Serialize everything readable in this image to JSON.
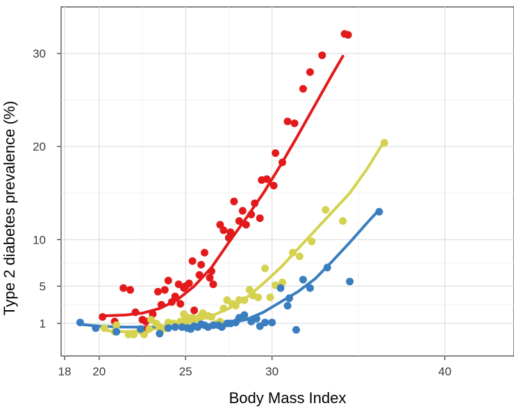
{
  "chart_data": {
    "type": "scatter",
    "title": "",
    "xlabel": "Body Mass Index",
    "ylabel": "Type 2 diabetes prevalence (%)",
    "xlim": [
      17.8,
      44.0
    ],
    "ylim": [
      -2.5,
      35.0
    ],
    "x_ticks": [
      18,
      20,
      25,
      30,
      40
    ],
    "x_tick_labels": [
      "18",
      "20",
      "25",
      "30",
      "40"
    ],
    "y_ticks": [
      1,
      5,
      10,
      20,
      30
    ],
    "y_tick_labels": [
      "1",
      "5",
      "10",
      "20",
      "30"
    ],
    "grid": true,
    "legend": "none",
    "series": [
      {
        "color": "#e31a1c",
        "points": [
          [
            20.2,
            1.7
          ],
          [
            20.9,
            1.2
          ],
          [
            21.4,
            4.8
          ],
          [
            21.8,
            4.6
          ],
          [
            22.1,
            2.2
          ],
          [
            22.5,
            1.4
          ],
          [
            22.7,
            1.2
          ],
          [
            22.8,
            0.4
          ],
          [
            23.1,
            2.0
          ],
          [
            23.4,
            4.4
          ],
          [
            23.6,
            3.0
          ],
          [
            23.8,
            4.6
          ],
          [
            24.0,
            5.6
          ],
          [
            24.2,
            3.3
          ],
          [
            24.4,
            3.9
          ],
          [
            24.6,
            5.2
          ],
          [
            24.7,
            3.1
          ],
          [
            24.9,
            4.8
          ],
          [
            25.0,
            5.0
          ],
          [
            25.2,
            5.3
          ],
          [
            25.4,
            7.7
          ],
          [
            25.5,
            2.4
          ],
          [
            25.8,
            6.2
          ],
          [
            25.9,
            7.3
          ],
          [
            26.1,
            8.6
          ],
          [
            26.4,
            5.9
          ],
          [
            26.5,
            6.6
          ],
          [
            26.6,
            5.2
          ],
          [
            27.0,
            11.6
          ],
          [
            27.2,
            11.0
          ],
          [
            27.5,
            10.2
          ],
          [
            27.6,
            10.8
          ],
          [
            27.8,
            14.1
          ],
          [
            28.1,
            12.0
          ],
          [
            28.3,
            13.1
          ],
          [
            28.5,
            11.6
          ],
          [
            28.8,
            12.7
          ],
          [
            29.0,
            13.9
          ],
          [
            29.3,
            12.3
          ],
          [
            29.4,
            16.4
          ],
          [
            29.7,
            16.5
          ],
          [
            30.1,
            15.8
          ],
          [
            30.2,
            19.3
          ],
          [
            30.6,
            18.3
          ],
          [
            30.9,
            22.7
          ],
          [
            31.3,
            22.5
          ],
          [
            31.8,
            26.2
          ],
          [
            32.2,
            28.0
          ],
          [
            32.9,
            29.8
          ],
          [
            34.2,
            32.1
          ],
          [
            34.4,
            32.0
          ]
        ],
        "fit": [
          [
            20.2,
            1.8
          ],
          [
            21.5,
            1.9
          ],
          [
            22.5,
            2.1
          ],
          [
            23.5,
            2.6
          ],
          [
            24.5,
            3.5
          ],
          [
            25.5,
            5.0
          ],
          [
            26.5,
            7.0
          ],
          [
            27.5,
            9.7
          ],
          [
            28.5,
            12.3
          ],
          [
            29.5,
            15.0
          ],
          [
            30.5,
            18.0
          ],
          [
            31.5,
            21.2
          ],
          [
            32.5,
            24.5
          ],
          [
            33.5,
            27.8
          ],
          [
            34.1,
            29.7
          ]
        ]
      },
      {
        "color": "#d4d24e",
        "points": [
          [
            20.3,
            0.5
          ],
          [
            20.9,
            0.1
          ],
          [
            21.0,
            0.8
          ],
          [
            21.7,
            -0.2
          ],
          [
            22.0,
            -0.2
          ],
          [
            22.4,
            0.2
          ],
          [
            22.6,
            -0.2
          ],
          [
            22.9,
            0.4
          ],
          [
            23.0,
            1.4
          ],
          [
            23.3,
            1.0
          ],
          [
            23.5,
            0.6
          ],
          [
            23.7,
            0.4
          ],
          [
            23.9,
            0.6
          ],
          [
            24.0,
            1.1
          ],
          [
            24.3,
            1.0
          ],
          [
            24.6,
            0.8
          ],
          [
            24.7,
            1.2
          ],
          [
            24.9,
            2.0
          ],
          [
            25.0,
            1.4
          ],
          [
            25.2,
            1.6
          ],
          [
            25.4,
            1.6
          ],
          [
            25.7,
            1.5
          ],
          [
            25.9,
            1.8
          ],
          [
            26.0,
            2.1
          ],
          [
            26.3,
            1.8
          ],
          [
            26.5,
            1.7
          ],
          [
            26.8,
            1.0
          ],
          [
            27.0,
            1.2
          ],
          [
            27.2,
            2.6
          ],
          [
            27.4,
            3.5
          ],
          [
            27.7,
            3.1
          ],
          [
            27.9,
            2.9
          ],
          [
            28.1,
            3.5
          ],
          [
            28.4,
            3.5
          ],
          [
            28.7,
            4.6
          ],
          [
            28.9,
            4.0
          ],
          [
            29.2,
            3.8
          ],
          [
            29.6,
            6.9
          ],
          [
            29.9,
            3.8
          ],
          [
            30.2,
            5.1
          ],
          [
            30.6,
            5.4
          ],
          [
            31.2,
            8.6
          ],
          [
            31.6,
            8.2
          ],
          [
            32.3,
            9.8
          ],
          [
            33.1,
            13.2
          ],
          [
            34.1,
            12.0
          ],
          [
            36.5,
            20.4
          ]
        ],
        "fit": [
          [
            20.5,
            0.2
          ],
          [
            21.5,
            0.1
          ],
          [
            22.5,
            0.2
          ],
          [
            23.5,
            0.5
          ],
          [
            24.5,
            0.8
          ],
          [
            25.5,
            1.2
          ],
          [
            26.5,
            1.8
          ],
          [
            27.5,
            2.6
          ],
          [
            28.5,
            3.7
          ],
          [
            29.5,
            5.3
          ],
          [
            30.5,
            7.0
          ],
          [
            31.5,
            9.0
          ],
          [
            32.5,
            11.0
          ],
          [
            33.5,
            13.0
          ],
          [
            34.5,
            15.0
          ],
          [
            35.5,
            17.6
          ],
          [
            36.4,
            20.3
          ]
        ]
      },
      {
        "color": "#3a7ebf",
        "points": [
          [
            18.9,
            1.1
          ],
          [
            19.8,
            0.5
          ],
          [
            21.0,
            0.1
          ],
          [
            22.4,
            0.4
          ],
          [
            23.5,
            -0.1
          ],
          [
            24.0,
            0.5
          ],
          [
            24.4,
            0.6
          ],
          [
            24.8,
            0.6
          ],
          [
            25.1,
            0.5
          ],
          [
            25.3,
            0.4
          ],
          [
            25.5,
            0.7
          ],
          [
            25.7,
            0.6
          ],
          [
            25.9,
            0.9
          ],
          [
            26.1,
            0.8
          ],
          [
            26.3,
            0.6
          ],
          [
            26.6,
            0.8
          ],
          [
            26.9,
            0.8
          ],
          [
            27.1,
            0.6
          ],
          [
            27.4,
            1.0
          ],
          [
            27.6,
            1.0
          ],
          [
            27.9,
            1.1
          ],
          [
            28.1,
            1.6
          ],
          [
            28.4,
            1.9
          ],
          [
            28.8,
            1.2
          ],
          [
            29.1,
            1.5
          ],
          [
            29.3,
            0.7
          ],
          [
            29.6,
            1.1
          ],
          [
            30.0,
            1.1
          ],
          [
            30.5,
            4.8
          ],
          [
            30.9,
            2.9
          ],
          [
            31.0,
            3.7
          ],
          [
            31.4,
            0.3
          ],
          [
            31.8,
            5.7
          ],
          [
            32.2,
            4.8
          ],
          [
            33.2,
            7.0
          ],
          [
            34.5,
            5.5
          ],
          [
            36.2,
            13.0
          ]
        ],
        "fit": [
          [
            18.9,
            0.9
          ],
          [
            20.0,
            0.7
          ],
          [
            21.5,
            0.6
          ],
          [
            23.0,
            0.6
          ],
          [
            24.5,
            0.7
          ],
          [
            26.0,
            0.8
          ],
          [
            27.5,
            1.0
          ],
          [
            28.5,
            1.4
          ],
          [
            29.5,
            2.2
          ],
          [
            30.5,
            3.3
          ],
          [
            31.5,
            4.4
          ],
          [
            32.5,
            5.8
          ],
          [
            33.5,
            7.7
          ],
          [
            34.5,
            9.7
          ],
          [
            35.5,
            11.8
          ],
          [
            36.2,
            13.2
          ]
        ]
      }
    ]
  }
}
